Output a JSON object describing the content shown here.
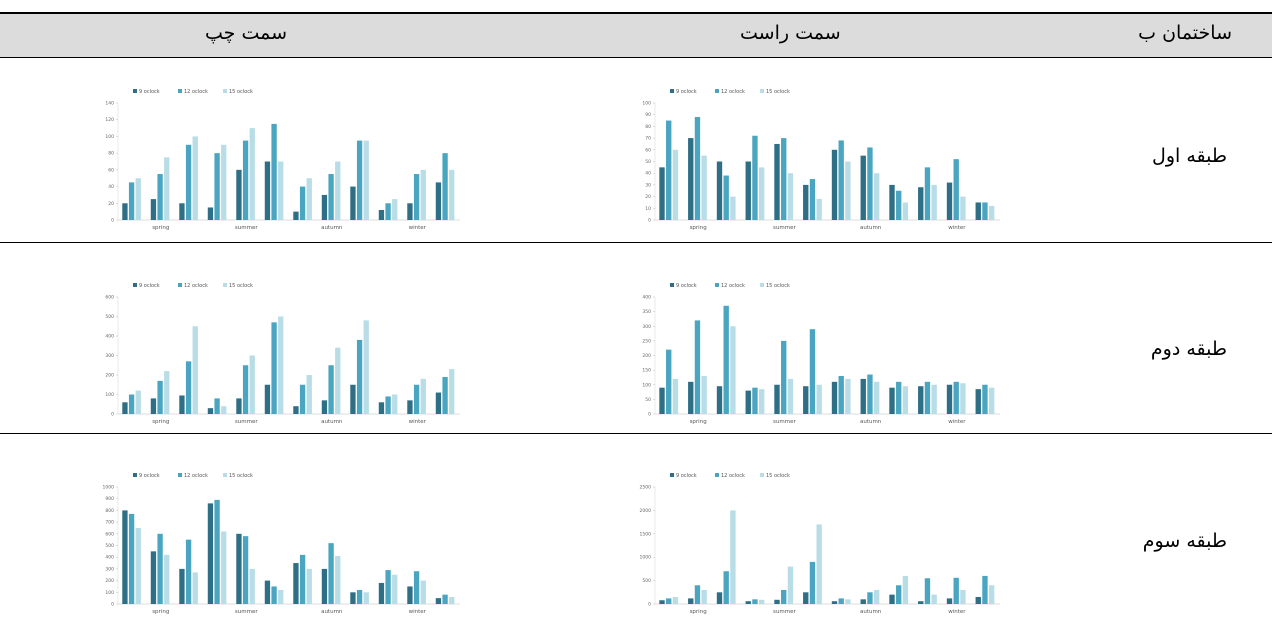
{
  "table": {
    "header": [
      "ساختمان ب",
      "سمت راست",
      "سمت چپ"
    ],
    "rows": [
      "طبقه اول",
      "طبقه دوم",
      "طبقه سوم"
    ]
  },
  "chart_data": [
    {
      "type": "bar",
      "categories": [
        null,
        "spring",
        null,
        null,
        "summer",
        null,
        null,
        "autumn",
        null,
        null,
        "winter",
        null
      ],
      "ylim": [
        0,
        100
      ],
      "yticks": [
        0,
        10,
        20,
        30,
        40,
        50,
        60,
        70,
        80,
        90,
        100
      ],
      "series": [
        {
          "name": "9 oclock",
          "color": "#2e6f86",
          "values": [
            45,
            70,
            50,
            50,
            65,
            30,
            60,
            55,
            30,
            28,
            32,
            15
          ]
        },
        {
          "name": "12 oclock",
          "color": "#4aa6c0",
          "values": [
            85,
            88,
            38,
            72,
            70,
            35,
            68,
            62,
            25,
            45,
            52,
            15
          ]
        },
        {
          "name": "15 oclock",
          "color": "#b9dde6",
          "values": [
            60,
            55,
            20,
            45,
            40,
            18,
            50,
            40,
            15,
            30,
            20,
            12
          ]
        }
      ]
    },
    {
      "type": "bar",
      "categories": [
        null,
        "spring",
        null,
        null,
        "summer",
        null,
        null,
        "autumn",
        null,
        null,
        "winter",
        null
      ],
      "ylim": [
        0,
        140
      ],
      "yticks": [
        0,
        20,
        40,
        60,
        80,
        100,
        120,
        140
      ],
      "series": [
        {
          "name": "9 oclock",
          "color": "#2e6f86",
          "values": [
            20,
            25,
            20,
            15,
            60,
            70,
            10,
            30,
            40,
            12,
            20,
            45
          ]
        },
        {
          "name": "12 oclock",
          "color": "#4aa6c0",
          "values": [
            45,
            55,
            90,
            80,
            95,
            115,
            40,
            55,
            95,
            20,
            55,
            80
          ]
        },
        {
          "name": "15 oclock",
          "color": "#b9dde6",
          "values": [
            50,
            75,
            100,
            90,
            110,
            70,
            50,
            70,
            95,
            25,
            60,
            60
          ]
        }
      ]
    },
    {
      "type": "bar",
      "categories": [
        null,
        "spring",
        null,
        null,
        "summer",
        null,
        null,
        "autumn",
        null,
        null,
        "winter",
        null
      ],
      "ylim": [
        0,
        400
      ],
      "yticks": [
        0,
        50,
        100,
        150,
        200,
        250,
        300,
        350,
        400
      ],
      "series": [
        {
          "name": "9 oclock",
          "color": "#2e6f86",
          "values": [
            90,
            110,
            95,
            80,
            100,
            95,
            110,
            120,
            90,
            95,
            100,
            85
          ]
        },
        {
          "name": "12 oclock",
          "color": "#4aa6c0",
          "values": [
            220,
            320,
            370,
            90,
            250,
            290,
            130,
            135,
            110,
            110,
            110,
            100
          ]
        },
        {
          "name": "15 oclock",
          "color": "#b9dde6",
          "values": [
            120,
            130,
            300,
            85,
            120,
            100,
            120,
            110,
            95,
            100,
            105,
            90
          ]
        }
      ]
    },
    {
      "type": "bar",
      "categories": [
        null,
        "spring",
        null,
        null,
        "summer",
        null,
        null,
        "autumn",
        null,
        null,
        "winter",
        null
      ],
      "ylim": [
        0,
        600
      ],
      "yticks": [
        0,
        100,
        200,
        300,
        400,
        500,
        600
      ],
      "series": [
        {
          "name": "9 oclock",
          "color": "#2e6f86",
          "values": [
            60,
            80,
            95,
            30,
            80,
            150,
            40,
            70,
            150,
            60,
            70,
            110
          ]
        },
        {
          "name": "12 oclock",
          "color": "#4aa6c0",
          "values": [
            100,
            170,
            270,
            80,
            250,
            470,
            150,
            250,
            380,
            90,
            150,
            190
          ]
        },
        {
          "name": "15 oclock",
          "color": "#b9dde6",
          "values": [
            120,
            220,
            450,
            40,
            300,
            500,
            200,
            340,
            480,
            100,
            180,
            230
          ]
        }
      ]
    },
    {
      "type": "bar",
      "categories": [
        null,
        "spring",
        null,
        null,
        "summer",
        null,
        null,
        "autumn",
        null,
        null,
        "winter",
        null
      ],
      "ylim": [
        0,
        2500
      ],
      "yticks": [
        0,
        500,
        1000,
        1500,
        2000,
        2500
      ],
      "series": [
        {
          "name": "9 oclock",
          "color": "#2e6f86",
          "values": [
            80,
            120,
            250,
            60,
            90,
            250,
            60,
            100,
            200,
            60,
            120,
            150
          ]
        },
        {
          "name": "12 oclock",
          "color": "#4aa6c0",
          "values": [
            120,
            400,
            700,
            100,
            300,
            900,
            120,
            250,
            400,
            550,
            560,
            600
          ]
        },
        {
          "name": "15 oclock",
          "color": "#b9dde6",
          "values": [
            150,
            300,
            2000,
            90,
            800,
            1700,
            100,
            300,
            600,
            200,
            300,
            400
          ]
        }
      ]
    },
    {
      "type": "bar",
      "categories": [
        null,
        "spring",
        null,
        null,
        "summer",
        null,
        null,
        "autumn",
        null,
        null,
        "winter",
        null
      ],
      "ylim": [
        0,
        1000
      ],
      "yticks": [
        0,
        100,
        200,
        300,
        400,
        500,
        600,
        700,
        800,
        900,
        1000
      ],
      "series": [
        {
          "name": "9 oclock",
          "color": "#2e6f86",
          "values": [
            800,
            450,
            300,
            860,
            600,
            200,
            350,
            300,
            100,
            180,
            150,
            50
          ]
        },
        {
          "name": "12 oclock",
          "color": "#4aa6c0",
          "values": [
            770,
            600,
            550,
            890,
            580,
            150,
            420,
            520,
            120,
            290,
            280,
            80
          ]
        },
        {
          "name": "15 oclock",
          "color": "#b9dde6",
          "values": [
            650,
            420,
            270,
            620,
            300,
            120,
            300,
            410,
            100,
            250,
            200,
            60
          ]
        }
      ]
    }
  ]
}
